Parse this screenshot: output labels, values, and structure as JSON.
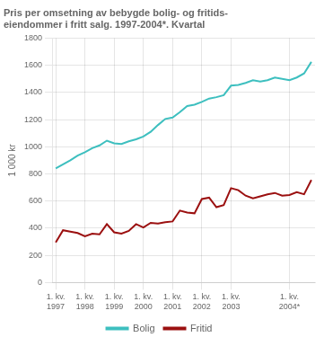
{
  "chart_data": {
    "type": "line",
    "title": "Pris per omsetning av bebygde bolig- og fritids-\neiendommer i fritt salg. 1997-2004*. Kvartal",
    "y_label": "1 000 kr",
    "categories": [
      "1. kv.\n1997",
      null,
      null,
      null,
      "1. kv.\n1998",
      null,
      null,
      null,
      "1. kv.\n1999",
      null,
      null,
      null,
      "1. kv.\n2000",
      null,
      null,
      null,
      "1. kv.\n2001",
      null,
      null,
      null,
      "1. kv.\n2002",
      null,
      null,
      null,
      "1. kv.\n2003",
      null,
      null,
      null,
      null,
      null,
      null,
      null,
      "1. kv.\n2004*",
      null,
      null,
      null
    ],
    "series": [
      {
        "name": "Bolig",
        "color": "#3dbfbf",
        "values": [
          840,
          870,
          900,
          935,
          960,
          990,
          1010,
          1045,
          1025,
          1020,
          1040,
          1055,
          1075,
          1110,
          1160,
          1205,
          1215,
          1255,
          1300,
          1310,
          1330,
          1355,
          1365,
          1380,
          1450,
          1455,
          1470,
          1490,
          1480,
          1490,
          1510,
          1500,
          1490,
          1510,
          1540,
          1625
        ]
      },
      {
        "name": "Fritid",
        "color": "#9b1010",
        "values": [
          295,
          385,
          375,
          365,
          340,
          360,
          355,
          430,
          370,
          360,
          380,
          430,
          405,
          440,
          435,
          445,
          450,
          530,
          515,
          510,
          615,
          625,
          555,
          570,
          695,
          680,
          640,
          620,
          635,
          650,
          660,
          640,
          645,
          665,
          650,
          755
        ]
      }
    ],
    "ylim": [
      0,
      1800
    ],
    "yticks": [
      0,
      200,
      400,
      600,
      800,
      1000,
      1200,
      1400,
      1600,
      1800
    ],
    "grid": true,
    "legend": "bottom"
  }
}
